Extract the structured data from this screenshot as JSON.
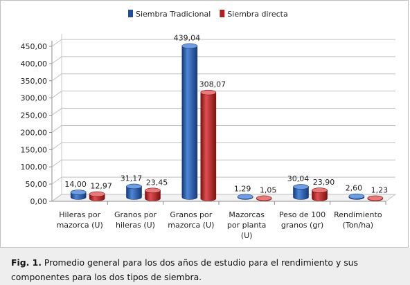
{
  "chart_data": {
    "type": "bar",
    "categories": [
      [
        "Hileras por",
        "mazorca (U)"
      ],
      [
        "Granos por",
        "hileras (U)"
      ],
      [
        "Granos por",
        "mazorca (U)"
      ],
      [
        "Mazorcas",
        "por planta",
        "(U)"
      ],
      [
        "Peso de 100",
        "granos (gr)"
      ],
      [
        "Rendimiento",
        "(Ton/ha)"
      ]
    ],
    "series": [
      {
        "name": "Siembra Tradicional",
        "color": "#1f4e9c",
        "values": [
          14.0,
          31.17,
          439.04,
          1.29,
          30.04,
          2.6
        ],
        "labels": [
          "14,00",
          "31,17",
          "439,04",
          "1,29",
          "30,04",
          "2,60"
        ]
      },
      {
        "name": "Siembra directa",
        "color": "#b21e1e",
        "values": [
          12.97,
          23.45,
          308.07,
          1.05,
          23.9,
          1.23
        ],
        "labels": [
          "12,97",
          "23,45",
          "308,07",
          "1,05",
          "23,90",
          "1,23"
        ]
      }
    ],
    "ylim": [
      0,
      450
    ],
    "yticks": [
      "0,00",
      "50,00",
      "100,00",
      "150,00",
      "200,00",
      "250,00",
      "300,00",
      "350,00",
      "400,00",
      "450,00"
    ],
    "grid": true,
    "legend_position": "top"
  },
  "caption": {
    "label": "Fig. 1.",
    "text": " Promedio general para los dos años de estudio para el rendimiento y sus componentes para los dos tipos de siembra."
  }
}
